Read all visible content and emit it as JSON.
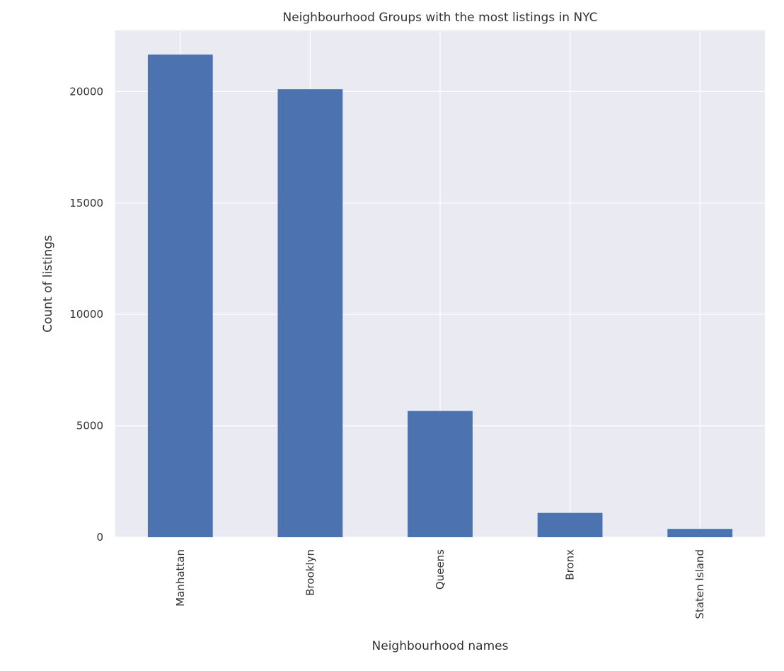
{
  "chart_data": {
    "type": "bar",
    "title": "Neighbourhood Groups with the most listings in NYC",
    "xlabel": "Neighbourhood names",
    "ylabel": "Count of listings",
    "categories": [
      "Manhattan",
      "Brooklyn",
      "Queens",
      "Bronx",
      "Staten Island"
    ],
    "values": [
      21661,
      20104,
      5666,
      1091,
      373
    ],
    "yticks": [
      0,
      5000,
      10000,
      15000,
      20000
    ],
    "ytick_labels": [
      "0",
      "5000",
      "10000",
      "15000",
      "20000"
    ],
    "ylim": [
      0,
      22744
    ],
    "grid": true,
    "legend": "none",
    "colors": {
      "bar": "#4c72b0",
      "plot_background": "#eaeaf2",
      "grid": "#ffffff",
      "text": "#333333"
    }
  }
}
